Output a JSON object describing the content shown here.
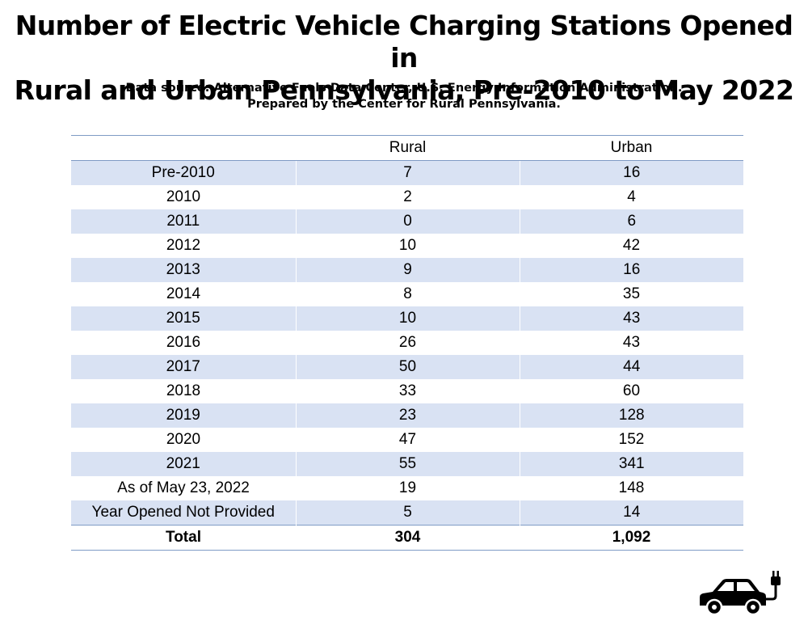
{
  "chart_data": {
    "type": "table",
    "title": "Number of Electric Vehicle Charging Stations Opened in Rural and Urban Pennsylvania, Pre-2010 to May 2022",
    "title_line1": "Number of Electric Vehicle Charging Stations Opened in",
    "title_line2": "Rural and Urban Pennsylvania, Pre-2010 to May 2022",
    "subtitle_line1": "Data source: Alternative Fuels Data Center, U.S. Energy Information Administration.",
    "subtitle_line2": "Prepared by the Center for Rural Pennsylvania.",
    "columns": [
      "",
      "Rural",
      "Urban"
    ],
    "rows": [
      {
        "label": "Pre-2010",
        "rural": "7",
        "urban": "16"
      },
      {
        "label": "2010",
        "rural": "2",
        "urban": "4"
      },
      {
        "label": "2011",
        "rural": "0",
        "urban": "6"
      },
      {
        "label": "2012",
        "rural": "10",
        "urban": "42"
      },
      {
        "label": "2013",
        "rural": "9",
        "urban": "16"
      },
      {
        "label": "2014",
        "rural": "8",
        "urban": "35"
      },
      {
        "label": "2015",
        "rural": "10",
        "urban": "43"
      },
      {
        "label": "2016",
        "rural": "26",
        "urban": "43"
      },
      {
        "label": "2017",
        "rural": "50",
        "urban": "44"
      },
      {
        "label": "2018",
        "rural": "33",
        "urban": "60"
      },
      {
        "label": "2019",
        "rural": "23",
        "urban": "128"
      },
      {
        "label": "2020",
        "rural": "47",
        "urban": "152"
      },
      {
        "label": "2021",
        "rural": "55",
        "urban": "341"
      },
      {
        "label": "As of May 23, 2022",
        "rural": "19",
        "urban": "148"
      },
      {
        "label": "Year Opened Not Provided",
        "rural": "5",
        "urban": "14"
      }
    ],
    "total": {
      "label": "Total",
      "rural": "304",
      "urban": "1,092"
    }
  },
  "colors": {
    "band": "#d9e2f3",
    "rule": "#7f9bc5",
    "text": "#000000"
  },
  "icons": {
    "corner": "ev-car-plug-icon"
  }
}
